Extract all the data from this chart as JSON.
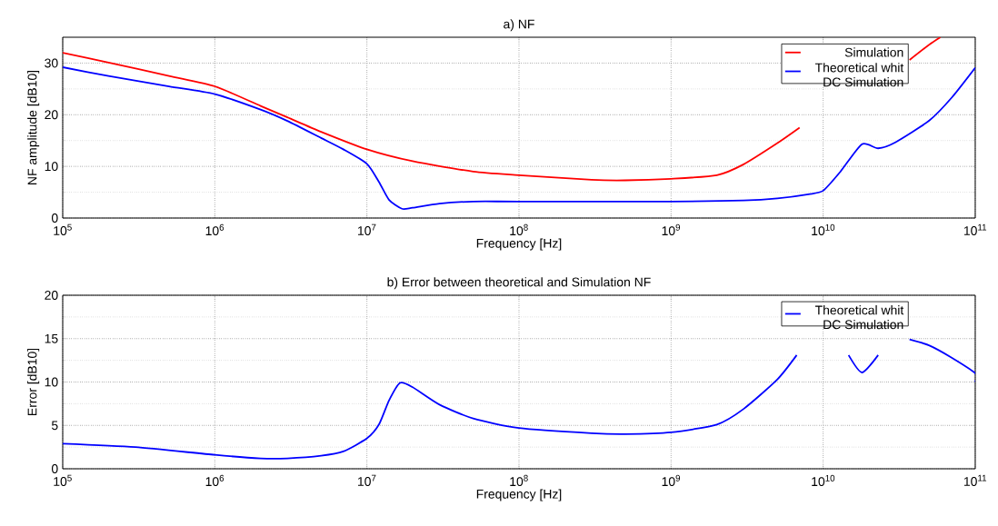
{
  "chart_data": [
    {
      "type": "line",
      "title": "a) NF",
      "xlabel": "Frequency [Hz]",
      "ylabel": "NF amplitude [dB10]",
      "log": "x",
      "grid": true,
      "legend": "top right",
      "xlim": [
        100000,
        100000000000
      ],
      "ylim": [
        0,
        35
      ],
      "xticks": [
        {
          "value": 100000,
          "label": "10$^{5}$"
        },
        {
          "value": 1000000,
          "label": "10$^{6}$"
        },
        {
          "value": 10000000,
          "label": "10$^{7}$"
        },
        {
          "value": 100000000,
          "label": "10$^{8}$"
        },
        {
          "value": 1000000000,
          "label": "10$^{9}$"
        },
        {
          "value": 10000000000,
          "label": "10$^{10}$"
        },
        {
          "value": 100000000000,
          "label": "10$^{11}$"
        }
      ],
      "yticks": [
        0,
        10,
        20,
        30
      ],
      "series": [
        {
          "name": "Simulation",
          "color": "#ff0000",
          "x": [
            100000,
            200000,
            500000,
            1000000,
            2000000,
            3000000,
            5000000,
            10000000,
            20000000,
            50000000,
            100000000,
            300000000,
            500000000,
            1000000000,
            2000000000,
            3000000000,
            5000000000,
            7000000000,
            10000000000,
            20000000000,
            37000000000,
            50000000000,
            59000000000
          ],
          "values": [
            32,
            30.1,
            27.5,
            25.5,
            21.7,
            19.5,
            16.7,
            13.3,
            11,
            9,
            8.3,
            7.4,
            7.3,
            7.6,
            8.3,
            10.4,
            14.5,
            17.5,
            null,
            null,
            30.6,
            33.6,
            35
          ]
        },
        {
          "name": "Theoretical whit DC Simulation",
          "color": "#0000ff",
          "x": [
            100000,
            200000,
            500000,
            1000000,
            2000000,
            3000000,
            5000000,
            7000000,
            10000000,
            12000000,
            14000000,
            17000000,
            20000000,
            30000000,
            50000000,
            100000000,
            1000000000,
            3000000000,
            5000000000,
            8000000000,
            10000000000,
            13000000000,
            18000000000,
            23000000000,
            30000000000,
            50000000000,
            70000000000,
            100000000000
          ],
          "values": [
            29.2,
            27.5,
            25.5,
            24,
            21,
            18.8,
            15.5,
            13.3,
            10.5,
            7,
            3.5,
            1.8,
            2,
            2.8,
            3.2,
            3.2,
            3.2,
            3.4,
            3.8,
            4.6,
            5.3,
            9,
            14.3,
            13.5,
            14.7,
            18.9,
            23.3,
            29.1
          ]
        }
      ]
    },
    {
      "type": "line",
      "title": "b) Error between theoretical and Simulation NF",
      "xlabel": "Frequency [Hz]",
      "ylabel": "Error [dB10]",
      "log": "x",
      "grid": true,
      "legend": "top right",
      "xlim": [
        100000,
        100000000000
      ],
      "ylim": [
        0,
        20
      ],
      "xticks": [
        {
          "value": 100000,
          "label": "10$^{5}$"
        },
        {
          "value": 1000000,
          "label": "10$^{6}$"
        },
        {
          "value": 10000000,
          "label": "10$^{7}$"
        },
        {
          "value": 100000000,
          "label": "10$^{8}$"
        },
        {
          "value": 1000000000,
          "label": "10$^{9}$"
        },
        {
          "value": 10000000000,
          "label": "10$^{10}$"
        },
        {
          "value": 100000000000,
          "label": "10$^{11}$"
        }
      ],
      "yticks": [
        0,
        5,
        10,
        15,
        20
      ],
      "series": [
        {
          "name": "Theoretical whit DC Simulation",
          "color": "#0000ff",
          "x": [
            100000,
            300000,
            1000000,
            2000000,
            3000000,
            5000000,
            7000000,
            10000000,
            12000000,
            14000000,
            16500000,
            20000000,
            30000000,
            50000000,
            100000000,
            300000000,
            500000000,
            1000000000,
            2000000000,
            3000000000,
            5000000000,
            6700000000,
            10000000000,
            14700000000,
            18000000000,
            23000000000,
            30000000000,
            37000000000,
            50000000000,
            70000000000,
            100000000000,
            100000000000
          ],
          "values": [
            2.9,
            2.5,
            1.6,
            1.2,
            1.2,
            1.5,
            2,
            3.5,
            5.1,
            7.9,
            9.9,
            9.4,
            7.4,
            5.8,
            4.7,
            4.1,
            4,
            4.2,
            5.1,
            6.9,
            10.3,
            13.1,
            null,
            13.1,
            11.1,
            13.1,
            null,
            14.9,
            14.2,
            12.8,
            11,
            10
          ]
        }
      ]
    }
  ]
}
